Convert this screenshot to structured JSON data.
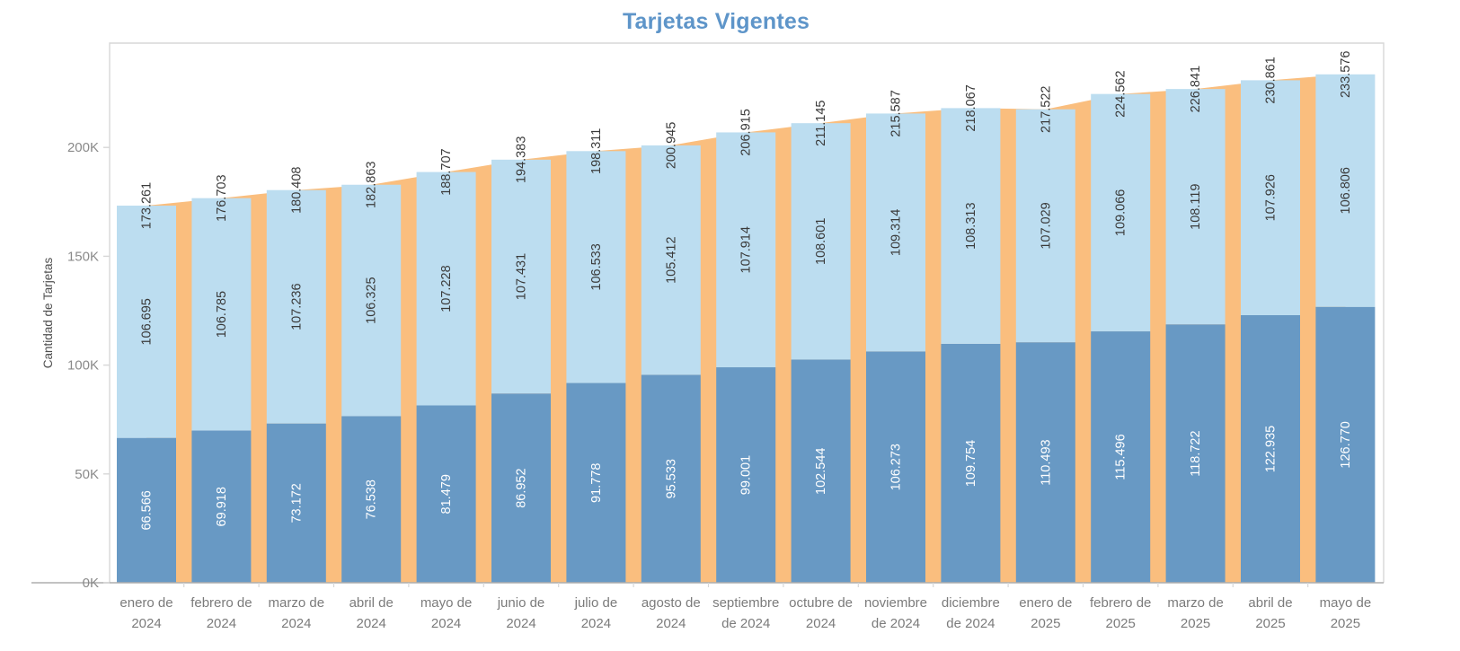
{
  "title": "Tarjetas Vigentes",
  "colors": {
    "title_text": "#5E95C9",
    "bottom_stack": "#6899C4",
    "top_stack": "#BCDDF0",
    "area_background": "#FABE7E",
    "value_label_dark": "#3A3A3A",
    "value_label_light": "#FFFFFF",
    "axis_tick_text": "#8A8A8A",
    "category_text": "#7B7B7B",
    "axis_title_text": "#4F4F4F",
    "plot_border": "#D7D7D7",
    "axis_line": "#ADADAD"
  },
  "chart_data": {
    "type": "bar",
    "variant": "stacked-vertical-bars-with-area-silhouette-behind",
    "title": "Tarjetas Vigentes",
    "xlabel": "",
    "ylabel": "Cantidad de Tarjetas",
    "ylim": [
      0,
      247500
    ],
    "ytick_values": [
      0,
      50000,
      100000,
      150000,
      200000
    ],
    "ytick_labels": [
      "0K",
      "50K",
      "100K",
      "150K",
      "200K"
    ],
    "grid": false,
    "legend_position": "none",
    "categories": [
      "enero de 2024",
      "febrero de 2024",
      "marzo de 2024",
      "abril de 2024",
      "mayo de 2024",
      "junio de 2024",
      "julio de 2024",
      "agosto de 2024",
      "septiembre de 2024",
      "octubre de 2024",
      "noviembre de 2024",
      "diciembre de 2024",
      "enero de 2025",
      "febrero de 2025",
      "marzo de 2025",
      "abril de 2025",
      "mayo de 2025"
    ],
    "category_label_lines": [
      [
        "enero de",
        "2024"
      ],
      [
        "febrero de",
        "2024"
      ],
      [
        "marzo de",
        "2024"
      ],
      [
        "abril de",
        "2024"
      ],
      [
        "mayo de",
        "2024"
      ],
      [
        "junio de",
        "2024"
      ],
      [
        "julio de",
        "2024"
      ],
      [
        "agosto de",
        "2024"
      ],
      [
        "septiembre",
        "de 2024"
      ],
      [
        "octubre de",
        "2024"
      ],
      [
        "noviembre",
        "de 2024"
      ],
      [
        "diciembre",
        "de 2024"
      ],
      [
        "enero de",
        "2025"
      ],
      [
        "febrero de",
        "2025"
      ],
      [
        "marzo de",
        "2025"
      ],
      [
        "abril de",
        "2025"
      ],
      [
        "mayo de",
        "2025"
      ]
    ],
    "series": [
      {
        "name": "bottom-stack",
        "color": "#6899C4",
        "values": [
          66566,
          69918,
          73172,
          76538,
          81479,
          86952,
          91778,
          95533,
          99001,
          102544,
          106273,
          109754,
          110493,
          115496,
          118722,
          122935,
          126770
        ],
        "labels": [
          "66.566",
          "69.918",
          "73.172",
          "76.538",
          "81.479",
          "86.952",
          "91.778",
          "95.533",
          "99.001",
          "102.544",
          "106.273",
          "109.754",
          "110.493",
          "115.496",
          "118.722",
          "122.935",
          "126.770"
        ]
      },
      {
        "name": "top-stack",
        "color": "#BCDDF0",
        "values": [
          106695,
          106785,
          107236,
          106325,
          107228,
          107431,
          106533,
          105412,
          107914,
          108601,
          109314,
          108313,
          107029,
          109066,
          108119,
          107926,
          106806
        ],
        "labels": [
          "106.695",
          "106.785",
          "107.236",
          "106.325",
          "107.228",
          "107.431",
          "106.533",
          "105.412",
          "107.914",
          "108.601",
          "109.314",
          "108.313",
          "107.029",
          "109.066",
          "108.119",
          "107.926",
          "106.806"
        ]
      },
      {
        "name": "total-area",
        "type": "area",
        "color": "#FABE7E",
        "values": [
          173261,
          176703,
          180408,
          182863,
          188707,
          194383,
          198311,
          200945,
          206915,
          211145,
          215587,
          218067,
          217522,
          224562,
          226841,
          230861,
          233576
        ],
        "labels": [
          "173.261",
          "176.703",
          "180.408",
          "182.863",
          "188.707",
          "194.383",
          "198.311",
          "200.945",
          "206.915",
          "211.145",
          "215.587",
          "218.067",
          "217.522",
          "224.562",
          "226.841",
          "230.861",
          "233.576"
        ]
      }
    ]
  }
}
